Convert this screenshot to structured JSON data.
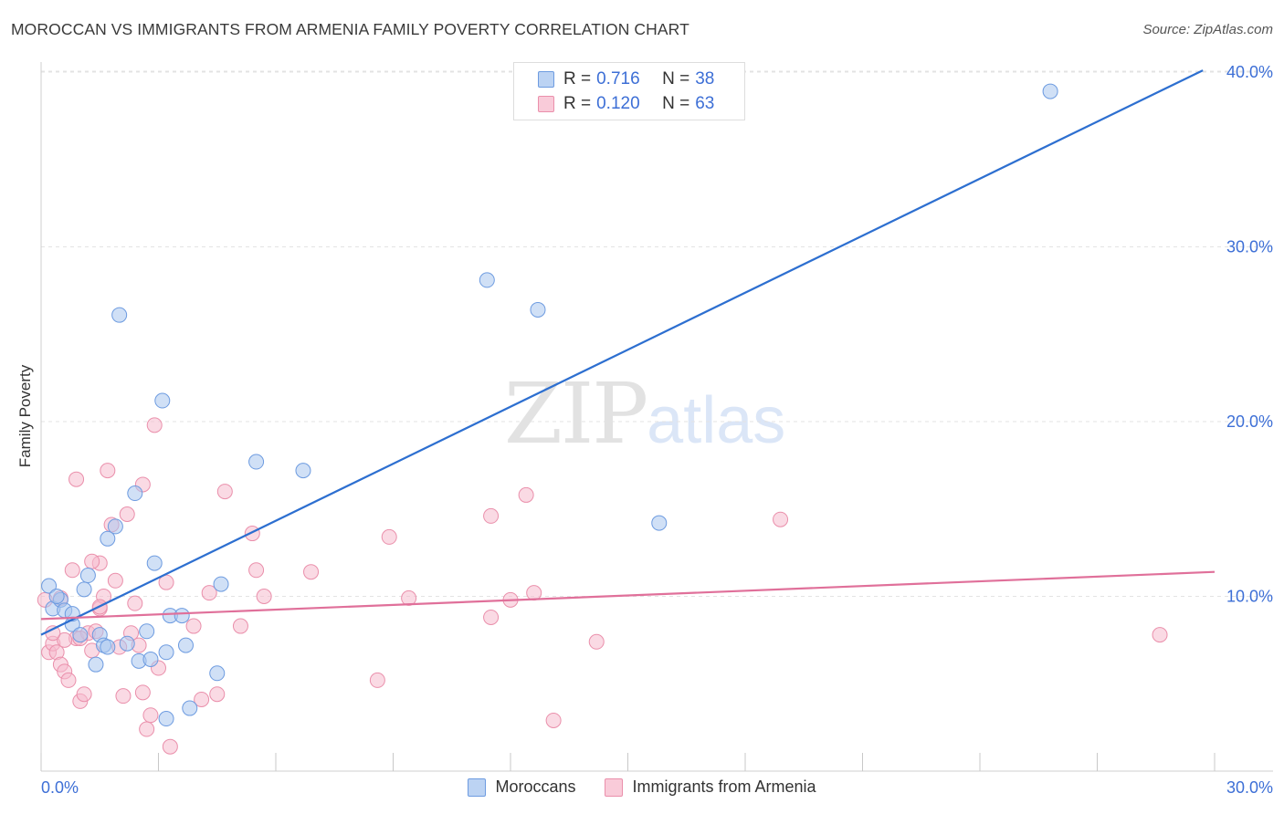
{
  "header": {
    "title": "MOROCCAN VS IMMIGRANTS FROM ARMENIA FAMILY POVERTY CORRELATION CHART",
    "source": "Source: ZipAtlas.com"
  },
  "watermark": {
    "zip": "ZIP",
    "atlas": "atlas"
  },
  "legend": {
    "rows": [
      {
        "r_label": "R = ",
        "r_value": "0.716",
        "n_label": "N = ",
        "n_value": "38"
      },
      {
        "r_label": "R = ",
        "r_value": "0.120",
        "n_label": "N = ",
        "n_value": "63"
      }
    ]
  },
  "bottom_legend": {
    "s1": "Moroccans",
    "s2": "Immigrants from Armenia"
  },
  "colors": {
    "blue_fill": "#a9c6ef",
    "blue_stroke": "#6d9be0",
    "blue_line": "#2d6fd0",
    "pink_fill": "#f6bccd",
    "pink_stroke": "#ea8fab",
    "pink_line": "#e0709a",
    "tick_text": "#3d6fd6",
    "grid": "#e3e3e3"
  },
  "chart_data": {
    "type": "scatter",
    "title": "MOROCCAN VS IMMIGRANTS FROM ARMENIA FAMILY POVERTY CORRELATION CHART",
    "xlabel": "",
    "ylabel": "Family Poverty",
    "xlim": [
      0,
      30
    ],
    "ylim": [
      0,
      40
    ],
    "x_tick_labels": [
      "0.0%",
      "30.0%"
    ],
    "y_ticks": [
      10,
      20,
      30,
      40
    ],
    "y_tick_labels": [
      "10.0%",
      "20.0%",
      "30.0%",
      "40.0%"
    ],
    "grid": true,
    "legend_position": "top-center",
    "series": [
      {
        "name": "Moroccans",
        "color": "#6d9be0",
        "trend": {
          "x": [
            0,
            29.7
          ],
          "y": [
            7.8,
            40.1
          ]
        },
        "points": [
          [
            0.2,
            10.6
          ],
          [
            0.3,
            9.3
          ],
          [
            0.5,
            9.8
          ],
          [
            0.6,
            9.2
          ],
          [
            0.8,
            8.4
          ],
          [
            1.0,
            7.8
          ],
          [
            1.1,
            10.4
          ],
          [
            1.2,
            11.2
          ],
          [
            1.4,
            6.1
          ],
          [
            1.5,
            7.8
          ],
          [
            1.6,
            7.2
          ],
          [
            1.7,
            13.3
          ],
          [
            1.9,
            14.0
          ],
          [
            2.0,
            26.1
          ],
          [
            2.2,
            7.3
          ],
          [
            2.4,
            15.9
          ],
          [
            2.5,
            6.3
          ],
          [
            2.7,
            8.0
          ],
          [
            2.8,
            6.4
          ],
          [
            2.9,
            11.9
          ],
          [
            3.1,
            21.2
          ],
          [
            3.2,
            6.8
          ],
          [
            3.3,
            8.9
          ],
          [
            3.6,
            8.9
          ],
          [
            3.7,
            7.2
          ],
          [
            3.8,
            3.6
          ],
          [
            4.5,
            5.6
          ],
          [
            4.6,
            10.7
          ],
          [
            5.5,
            17.7
          ],
          [
            6.7,
            17.2
          ],
          [
            11.4,
            28.1
          ],
          [
            12.7,
            26.4
          ],
          [
            15.8,
            14.2
          ],
          [
            25.8,
            38.9
          ],
          [
            3.2,
            3.0
          ],
          [
            1.7,
            7.1
          ],
          [
            0.4,
            10.0
          ],
          [
            0.8,
            9.0
          ]
        ]
      },
      {
        "name": "Immigrants from Armenia",
        "color": "#ea8fab",
        "trend": {
          "x": [
            0,
            30
          ],
          "y": [
            8.7,
            11.4
          ]
        },
        "points": [
          [
            0.1,
            9.8
          ],
          [
            0.2,
            6.8
          ],
          [
            0.3,
            7.3
          ],
          [
            0.4,
            6.8
          ],
          [
            0.5,
            6.1
          ],
          [
            0.6,
            5.7
          ],
          [
            0.7,
            5.2
          ],
          [
            0.8,
            11.5
          ],
          [
            0.9,
            7.6
          ],
          [
            1.0,
            4.0
          ],
          [
            1.1,
            4.4
          ],
          [
            1.2,
            7.9
          ],
          [
            1.3,
            6.9
          ],
          [
            1.4,
            8.0
          ],
          [
            1.5,
            9.3
          ],
          [
            1.6,
            10.0
          ],
          [
            1.7,
            17.2
          ],
          [
            1.8,
            14.1
          ],
          [
            1.9,
            10.9
          ],
          [
            2.0,
            7.1
          ],
          [
            2.1,
            4.3
          ],
          [
            2.2,
            14.7
          ],
          [
            2.3,
            7.9
          ],
          [
            2.4,
            9.6
          ],
          [
            2.5,
            7.2
          ],
          [
            2.6,
            4.5
          ],
          [
            2.7,
            2.4
          ],
          [
            2.8,
            3.2
          ],
          [
            3.2,
            10.8
          ],
          [
            3.3,
            1.4
          ],
          [
            3.9,
            8.3
          ],
          [
            4.1,
            4.1
          ],
          [
            4.3,
            10.2
          ],
          [
            4.5,
            4.4
          ],
          [
            4.7,
            16.0
          ],
          [
            5.1,
            8.3
          ],
          [
            5.4,
            13.6
          ],
          [
            5.5,
            11.5
          ],
          [
            5.7,
            10.0
          ],
          [
            6.9,
            11.4
          ],
          [
            8.6,
            5.2
          ],
          [
            8.9,
            13.4
          ],
          [
            9.4,
            9.9
          ],
          [
            11.5,
            8.8
          ],
          [
            11.5,
            14.6
          ],
          [
            12.0,
            9.8
          ],
          [
            12.4,
            15.8
          ],
          [
            12.6,
            10.2
          ],
          [
            13.1,
            2.9
          ],
          [
            14.2,
            7.4
          ],
          [
            18.9,
            14.4
          ],
          [
            28.6,
            7.8
          ],
          [
            0.9,
            16.7
          ],
          [
            1.5,
            11.9
          ],
          [
            2.6,
            16.4
          ],
          [
            1.3,
            12.0
          ],
          [
            0.6,
            7.5
          ],
          [
            3.0,
            5.9
          ],
          [
            0.3,
            7.9
          ],
          [
            2.9,
            19.8
          ],
          [
            1.5,
            9.4
          ],
          [
            1.0,
            7.6
          ],
          [
            0.5,
            9.9
          ]
        ]
      }
    ]
  }
}
